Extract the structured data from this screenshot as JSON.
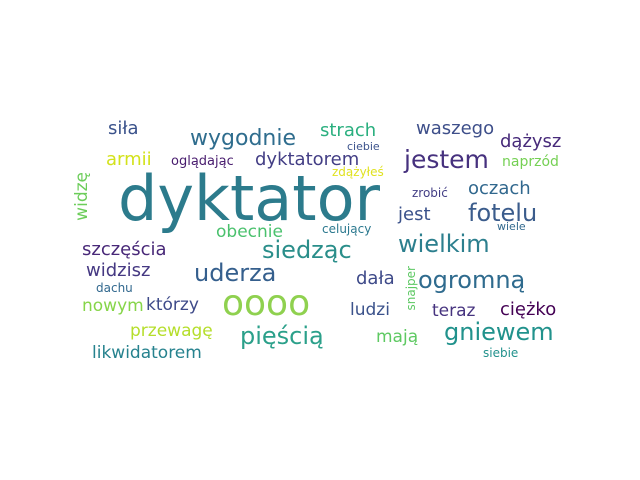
{
  "words": [
    {
      "text": "dyktator",
      "color": "#2c7b8c"
    },
    {
      "text": "oooo",
      "color": "#8fd14f"
    },
    {
      "text": "jestem",
      "color": "#46317e"
    },
    {
      "text": "wygodnie",
      "color": "#2f6d8e"
    },
    {
      "text": "siedząc",
      "color": "#2a8e8a"
    },
    {
      "text": "wielkim",
      "color": "#2c7f8e"
    },
    {
      "text": "fotelu",
      "color": "#3b5c8c"
    },
    {
      "text": "uderza",
      "color": "#355f8d"
    },
    {
      "text": "ogromną",
      "color": "#2f6b8e"
    },
    {
      "text": "pięścią",
      "color": "#2ba08a"
    },
    {
      "text": "gniewem",
      "color": "#21928c"
    },
    {
      "text": "strach",
      "color": "#2aaf7f"
    },
    {
      "text": "waszego",
      "color": "#3e4f8a"
    },
    {
      "text": "dążysz",
      "color": "#472a7a"
    },
    {
      "text": "siła",
      "color": "#3a528b"
    },
    {
      "text": "armii",
      "color": "#d3e21b"
    },
    {
      "text": "oglądając",
      "color": "#481c6e"
    },
    {
      "text": "dyktatorem",
      "color": "#433e85"
    },
    {
      "text": "naprzód",
      "color": "#75d054"
    },
    {
      "text": "ciebie",
      "color": "#3b528b"
    },
    {
      "text": "zdążyłeś",
      "color": "#e0e220"
    },
    {
      "text": "oczach",
      "color": "#31688e"
    },
    {
      "text": "zrobić",
      "color": "#433e85"
    },
    {
      "text": "jest",
      "color": "#3b528b"
    },
    {
      "text": "wiele",
      "color": "#31688e"
    },
    {
      "text": "celujący",
      "color": "#2a788e"
    },
    {
      "text": "obecnie",
      "color": "#4ac16d"
    },
    {
      "text": "widzę",
      "color": "#6ccd5a"
    },
    {
      "text": "szczęścia",
      "color": "#482878"
    },
    {
      "text": "widzisz",
      "color": "#453882"
    },
    {
      "text": "dachu",
      "color": "#31688e"
    },
    {
      "text": "dała",
      "color": "#3e4a89"
    },
    {
      "text": "snajper",
      "color": "#5dc863"
    },
    {
      "text": "nowym",
      "color": "#86d549"
    },
    {
      "text": "którzy",
      "color": "#3e4a89"
    },
    {
      "text": "ludzi",
      "color": "#3b528b"
    },
    {
      "text": "teraz",
      "color": "#46337f"
    },
    {
      "text": "ciężko",
      "color": "#440154"
    },
    {
      "text": "przewagę",
      "color": "#b5de2b"
    },
    {
      "text": "mają",
      "color": "#5ec962"
    },
    {
      "text": "likwidatorem",
      "color": "#26828e"
    },
    {
      "text": "siebie",
      "color": "#21918c"
    }
  ]
}
